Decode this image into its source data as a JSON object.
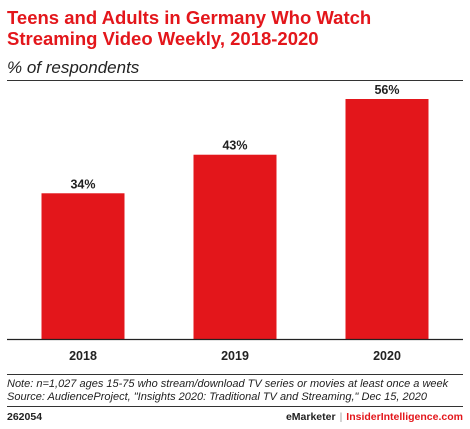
{
  "header": {
    "title_lines": [
      "Teens and Adults in Germany Who Watch",
      "Streaming Video Weekly, 2018-2020"
    ],
    "subtitle": "% of respondents"
  },
  "chart_data": {
    "type": "bar",
    "title": "Teens and Adults in Germany Who Watch Streaming Video Weekly, 2018-2020",
    "subtitle": "% of respondents",
    "categories": [
      "2018",
      "2019",
      "2020"
    ],
    "values": [
      34,
      43,
      56
    ],
    "value_labels": [
      "34%",
      "43%",
      "56%"
    ],
    "ylim": [
      0,
      56
    ],
    "bar_color": "#e3161b",
    "grid": false,
    "legend": false
  },
  "footer": {
    "note_lines": [
      "Note: n=1,027 ages 15-75 who stream/download TV series or movies at least once a week",
      "Source: AudienceProject, \"Insights 2020: Traditional TV and Streaming,\" Dec 15, 2020"
    ],
    "chart_id": "262054",
    "brand_emarketer": "eMarketer",
    "brand_separator": "|",
    "brand_insider": "InsiderIntelligence.com"
  },
  "colors": {
    "accent": "#e3161b",
    "text": "#222222"
  }
}
